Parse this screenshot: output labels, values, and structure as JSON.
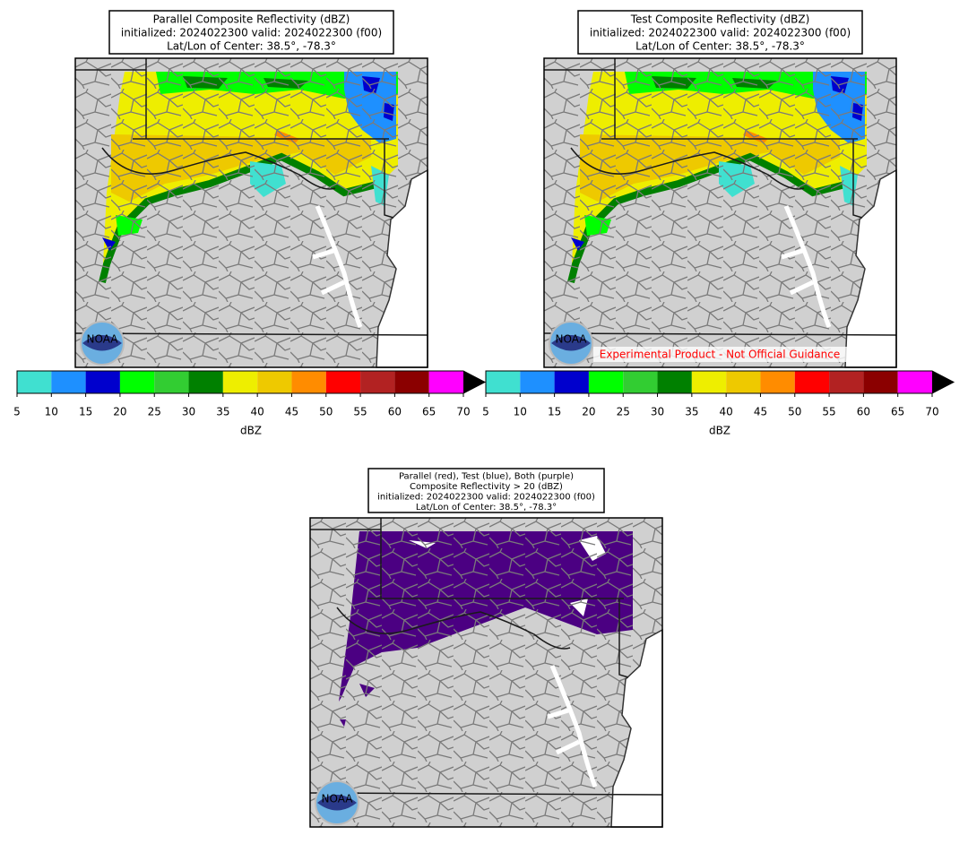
{
  "panels": [
    {
      "title": [
        "Parallel Composite Reflectivity (dBZ)",
        "initialized: 2024022300 valid: 2024022300 (f00)",
        "Lat/Lon of Center: 38.5°, -78.3°"
      ],
      "logo": "NOAA"
    },
    {
      "title": [
        "Test Composite Reflectivity (dBZ)",
        "initialized: 2024022300 valid: 2024022300 (f00)",
        "Lat/Lon of Center: 38.5°, -78.3°"
      ],
      "logo": "NOAA",
      "watermark": "Experimental Product - Not Official Guidance"
    },
    {
      "title": [
        "Parallel (red), Test (blue), Both (purple)",
        "Composite Reflectivity > 20 (dBZ)",
        "initialized: 2024022300 valid: 2024022300 (f00)",
        "Lat/Lon of Center: 38.5°, -78.3°"
      ],
      "logo": "NOAA"
    }
  ],
  "colorbar": {
    "ticks": [
      5,
      10,
      15,
      20,
      25,
      30,
      35,
      40,
      45,
      50,
      55,
      60,
      65,
      70
    ],
    "colors": [
      "#40e0d0",
      "#1e90ff",
      "#0000cd",
      "#00ff00",
      "#32cd32",
      "#008000",
      "#eeee00",
      "#eec900",
      "#ff8c00",
      "#ff0000",
      "#b22222",
      "#8b0000",
      "#ff00ff"
    ],
    "extend_color": "#000000",
    "label": "dBZ"
  }
}
